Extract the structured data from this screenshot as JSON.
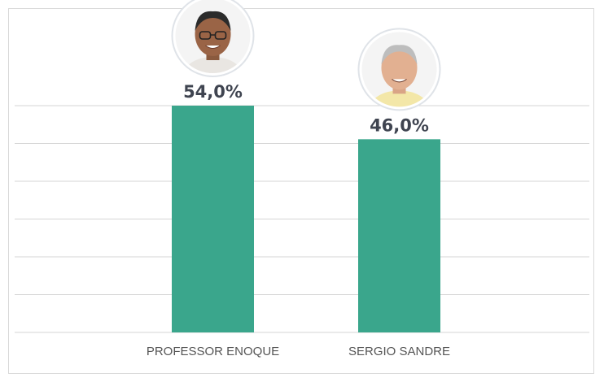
{
  "chart_data": {
    "type": "bar",
    "categories": [
      "PROFESSOR ENOQUE",
      "SERGIO SANDRE"
    ],
    "values": [
      54.0,
      46.0
    ],
    "value_labels": [
      "54,0%",
      "46,0%"
    ],
    "ylim": [
      0,
      54
    ],
    "grid": true,
    "bar_color": "#3aa68c",
    "avatar_icons": [
      "candidate-photo-professor-enoque",
      "candidate-photo-sergio-sandre"
    ]
  }
}
